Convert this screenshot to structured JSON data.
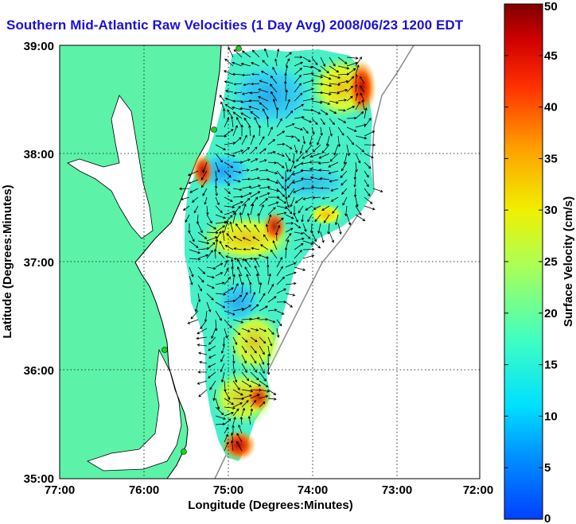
{
  "title": "Southern Mid-Atlantic Raw Velocities (1 Day Avg) 2008/06/23 1200 EDT",
  "map": {
    "lon_min": -77,
    "lon_max": -72,
    "lat_min": 35,
    "lat_max": 39,
    "xlabel": "Longitude (Degrees:Minutes)",
    "ylabel": "Latitude (Degrees:Minutes)",
    "x_ticks": [
      "77:00",
      "76:00",
      "75:00",
      "74:00",
      "73:00",
      "72:00"
    ],
    "y_ticks": [
      "39:00",
      "38:00",
      "37:00",
      "36:00",
      "35:00"
    ],
    "grid": "dotted",
    "land_color": "#5cf2a8",
    "coast_line_color": "#000000",
    "vector_color": "#000000"
  },
  "colorbar": {
    "label": "Surface Velocity (cm/s)",
    "min": 0,
    "max": 50,
    "ticks": [
      "0",
      "5",
      "10",
      "15",
      "20",
      "25",
      "30",
      "35",
      "40",
      "45",
      "50"
    ],
    "colormap": "jet",
    "placement": "right"
  }
}
